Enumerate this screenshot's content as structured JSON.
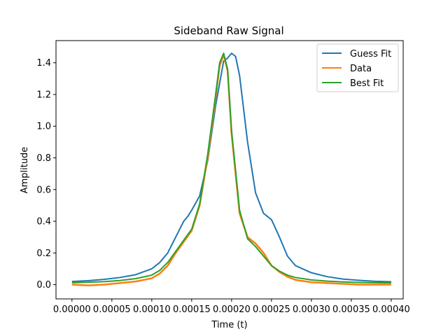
{
  "chart_data": {
    "type": "line",
    "title": "Sideband Raw Signal",
    "xlabel": "Time (t)",
    "ylabel": "Amplitude",
    "xlim": [
      -2e-05,
      0.000415
    ],
    "ylim": [
      -0.09,
      1.54
    ],
    "xticks": [
      0.0,
      5e-05,
      0.0001,
      0.00015,
      0.0002,
      0.00025,
      0.0003,
      0.00035,
      0.0004
    ],
    "xtick_labels": [
      "0.00000",
      "0.00005",
      "0.00010",
      "0.00015",
      "0.00020",
      "0.00025",
      "0.00030",
      "0.00035",
      "0.00040"
    ],
    "yticks": [
      0.0,
      0.2,
      0.4,
      0.6,
      0.8,
      1.0,
      1.2,
      1.4
    ],
    "ytick_labels": [
      "0.0",
      "0.2",
      "0.4",
      "0.6",
      "0.8",
      "1.0",
      "1.2",
      "1.4"
    ],
    "grid": false,
    "legend_position": "top-right",
    "series": [
      {
        "name": "Guess Fit",
        "color": "#1f77b4",
        "x": [
          0.0,
          2e-05,
          4e-05,
          6e-05,
          8e-05,
          0.0001,
          0.00011,
          0.00012,
          0.00013,
          0.00014,
          0.000145,
          0.00015,
          0.00016,
          0.00017,
          0.00018,
          0.00019,
          0.000195,
          0.0002,
          0.000205,
          0.00021,
          0.00022,
          0.00023,
          0.00024,
          0.000245,
          0.00025,
          0.00026,
          0.00027,
          0.00028,
          0.0003,
          0.00032,
          0.00034,
          0.00036,
          0.00038,
          0.0004
        ],
        "y": [
          0.02,
          0.025,
          0.033,
          0.045,
          0.063,
          0.1,
          0.14,
          0.2,
          0.3,
          0.4,
          0.43,
          0.47,
          0.56,
          0.78,
          1.13,
          1.41,
          1.43,
          1.46,
          1.44,
          1.32,
          0.9,
          0.58,
          0.45,
          0.43,
          0.41,
          0.3,
          0.18,
          0.12,
          0.075,
          0.05,
          0.035,
          0.027,
          0.021,
          0.018
        ]
      },
      {
        "name": "Data",
        "color": "#ff7f0e",
        "x": [
          0.0,
          2e-05,
          4e-05,
          6e-05,
          8e-05,
          0.0001,
          0.00011,
          0.00012,
          0.00013,
          0.00014,
          0.00015,
          0.00016,
          0.00017,
          0.00018,
          0.000185,
          0.00019,
          0.000195,
          0.0002,
          0.00021,
          0.00022,
          0.00023,
          0.00024,
          0.00025,
          0.00026,
          0.00027,
          0.00028,
          0.0003,
          0.00032,
          0.00034,
          0.00036,
          0.00038,
          0.0004
        ],
        "y": [
          0.0,
          -0.005,
          0.0,
          0.01,
          0.02,
          0.04,
          0.07,
          0.12,
          0.2,
          0.27,
          0.34,
          0.5,
          0.8,
          1.18,
          1.38,
          1.45,
          1.35,
          0.95,
          0.45,
          0.3,
          0.26,
          0.2,
          0.12,
          0.08,
          0.05,
          0.03,
          0.015,
          0.01,
          0.005,
          0.0,
          0.0,
          0.0
        ]
      },
      {
        "name": "Best Fit",
        "color": "#2ca02c",
        "x": [
          0.0,
          2e-05,
          4e-05,
          6e-05,
          8e-05,
          0.0001,
          0.00011,
          0.00012,
          0.00013,
          0.00014,
          0.00015,
          0.00016,
          0.00017,
          0.00018,
          0.000185,
          0.00019,
          0.000195,
          0.0002,
          0.00021,
          0.00022,
          0.00023,
          0.00024,
          0.00025,
          0.00026,
          0.00027,
          0.00028,
          0.0003,
          0.00032,
          0.00034,
          0.00036,
          0.00038,
          0.0004
        ],
        "y": [
          0.012,
          0.015,
          0.019,
          0.026,
          0.038,
          0.06,
          0.09,
          0.14,
          0.21,
          0.28,
          0.35,
          0.51,
          0.82,
          1.2,
          1.4,
          1.46,
          1.36,
          0.97,
          0.47,
          0.29,
          0.24,
          0.18,
          0.12,
          0.085,
          0.06,
          0.045,
          0.03,
          0.022,
          0.017,
          0.014,
          0.012,
          0.011
        ]
      }
    ]
  }
}
